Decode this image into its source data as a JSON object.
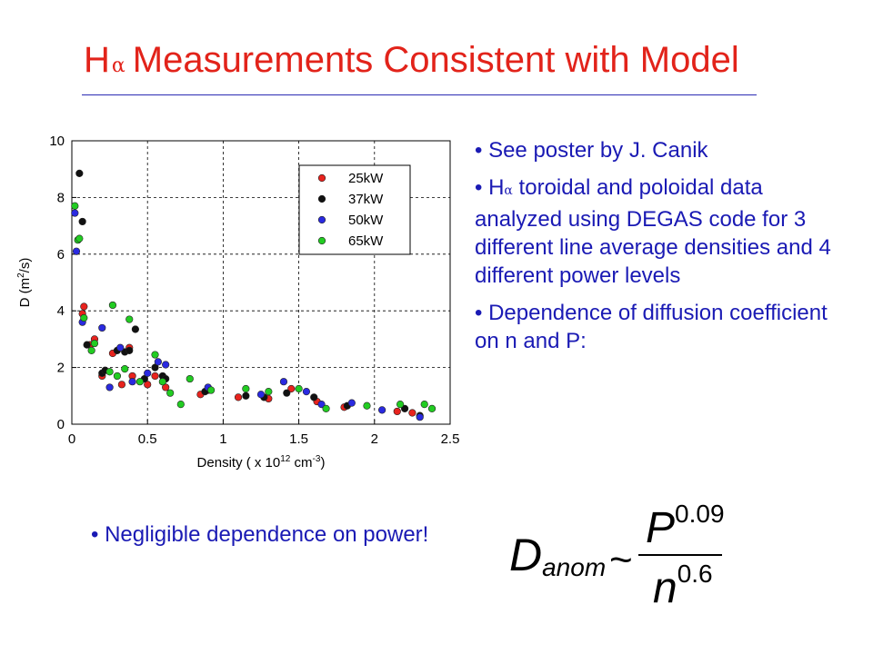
{
  "slide": {
    "title_prefix": "H",
    "title_alpha": "α",
    "title_text": "Measurements Consistent with Model"
  },
  "bullets": [
    {
      "text": "See poster by J. Canik"
    },
    {
      "prefix": "H",
      "alpha": "α",
      "text": " toroidal and poloidal data analyzed using DEGAS code for 3 different line average densities and 4 different power levels"
    },
    {
      "text": "Dependence of diffusion coefficient on n and P:"
    }
  ],
  "bottom_bullet": "Negligible dependence on power!",
  "equation": {
    "lhs_main": "D",
    "lhs_sub": "anom",
    "relation": "~",
    "num_base": "P",
    "num_exp": "0.09",
    "den_base": "n",
    "den_exp": "0.6"
  },
  "chart_data": {
    "type": "scatter",
    "xlabel_parts": [
      "Density ( x 10",
      "12",
      " cm",
      "-3",
      ")"
    ],
    "ylabel_parts": [
      "D (m",
      "2",
      "/s)"
    ],
    "xlim": [
      0,
      2.5
    ],
    "ylim": [
      0,
      10
    ],
    "xticks": [
      "0",
      "0.5",
      "1",
      "1.5",
      "2",
      "2.5"
    ],
    "yticks": [
      "0",
      "2",
      "4",
      "6",
      "8",
      "10"
    ],
    "grid": true,
    "grid_style": "dashed",
    "legend_position": "top-right",
    "series": [
      {
        "name": "25kW",
        "color": "#e8231e",
        "points": [
          [
            0.07,
            3.9
          ],
          [
            0.08,
            4.15
          ],
          [
            0.12,
            2.8
          ],
          [
            0.15,
            3.0
          ],
          [
            0.2,
            1.7
          ],
          [
            0.27,
            2.5
          ],
          [
            0.33,
            1.4
          ],
          [
            0.38,
            2.7
          ],
          [
            0.4,
            1.7
          ],
          [
            0.5,
            1.4
          ],
          [
            0.55,
            1.7
          ],
          [
            0.62,
            1.3
          ],
          [
            0.85,
            1.05
          ],
          [
            0.9,
            1.2
          ],
          [
            1.1,
            0.95
          ],
          [
            1.3,
            0.9
          ],
          [
            1.45,
            1.25
          ],
          [
            1.62,
            0.8
          ],
          [
            1.8,
            0.6
          ],
          [
            2.15,
            0.45
          ],
          [
            2.25,
            0.4
          ]
        ]
      },
      {
        "name": "37kW",
        "color": "#111111",
        "points": [
          [
            0.05,
            8.85
          ],
          [
            0.07,
            7.15
          ],
          [
            0.1,
            2.8
          ],
          [
            0.2,
            1.8
          ],
          [
            0.22,
            1.9
          ],
          [
            0.3,
            2.6
          ],
          [
            0.35,
            2.55
          ],
          [
            0.38,
            2.6
          ],
          [
            0.42,
            3.35
          ],
          [
            0.48,
            1.6
          ],
          [
            0.55,
            2.0
          ],
          [
            0.6,
            1.7
          ],
          [
            0.62,
            1.6
          ],
          [
            0.88,
            1.15
          ],
          [
            1.15,
            1.0
          ],
          [
            1.27,
            0.95
          ],
          [
            1.42,
            1.1
          ],
          [
            1.6,
            0.95
          ],
          [
            1.82,
            0.65
          ],
          [
            2.2,
            0.55
          ],
          [
            2.3,
            0.3
          ]
        ]
      },
      {
        "name": "50kW",
        "color": "#2a2ae0",
        "points": [
          [
            0.02,
            7.45
          ],
          [
            0.03,
            6.1
          ],
          [
            0.07,
            3.6
          ],
          [
            0.2,
            3.4
          ],
          [
            0.25,
            1.3
          ],
          [
            0.32,
            2.7
          ],
          [
            0.4,
            1.5
          ],
          [
            0.5,
            1.8
          ],
          [
            0.57,
            2.2
          ],
          [
            0.62,
            2.1
          ],
          [
            0.9,
            1.3
          ],
          [
            1.25,
            1.05
          ],
          [
            1.4,
            1.5
          ],
          [
            1.55,
            1.15
          ],
          [
            1.65,
            0.7
          ],
          [
            1.85,
            0.75
          ],
          [
            2.05,
            0.5
          ],
          [
            2.3,
            0.25
          ]
        ]
      },
      {
        "name": "65kW",
        "color": "#22cc22",
        "points": [
          [
            0.02,
            7.7
          ],
          [
            0.04,
            6.5
          ],
          [
            0.05,
            6.55
          ],
          [
            0.08,
            3.75
          ],
          [
            0.13,
            2.6
          ],
          [
            0.15,
            2.85
          ],
          [
            0.25,
            1.85
          ],
          [
            0.27,
            4.2
          ],
          [
            0.3,
            1.7
          ],
          [
            0.35,
            1.95
          ],
          [
            0.38,
            3.7
          ],
          [
            0.45,
            1.5
          ],
          [
            0.55,
            2.45
          ],
          [
            0.6,
            1.5
          ],
          [
            0.65,
            1.1
          ],
          [
            0.72,
            0.7
          ],
          [
            0.78,
            1.6
          ],
          [
            0.92,
            1.2
          ],
          [
            1.15,
            1.25
          ],
          [
            1.3,
            1.15
          ],
          [
            1.5,
            1.25
          ],
          [
            1.68,
            0.55
          ],
          [
            1.95,
            0.65
          ],
          [
            2.17,
            0.7
          ],
          [
            2.33,
            0.7
          ],
          [
            2.38,
            0.55
          ]
        ]
      }
    ]
  }
}
